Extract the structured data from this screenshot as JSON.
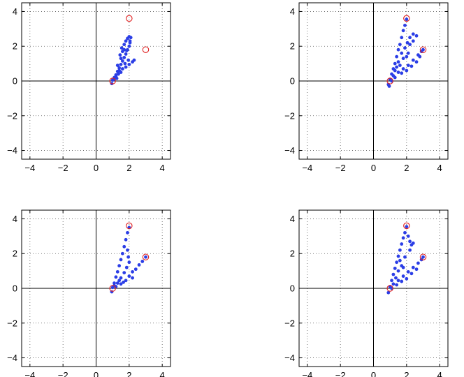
{
  "colors": {
    "points": "#2b3ee6",
    "markers": "#e02020",
    "axes": "#000000",
    "grid": "#555555"
  },
  "chart_data": [
    {
      "type": "scatter",
      "title": "",
      "xlabel": "",
      "ylabel": "",
      "xlim": [
        -4.5,
        4.5
      ],
      "ylim": [
        -4.5,
        4.5
      ],
      "xticks": [
        -4,
        -2,
        0,
        2,
        4
      ],
      "yticks": [
        -4,
        -2,
        0,
        2,
        4
      ],
      "xtick_labels": [
        "−4",
        "−2",
        "0",
        "2",
        "4"
      ],
      "ytick_labels": [
        "−4",
        "−2",
        "0",
        "2",
        "4"
      ],
      "grid": "dotted",
      "markers": [
        [
          1,
          0
        ],
        [
          2,
          3.6
        ],
        [
          3,
          1.8
        ]
      ],
      "series": [
        {
          "values": [
            [
              0.95,
              -0.15
            ],
            [
              1.0,
              0.05
            ],
            [
              1.1,
              0.2
            ],
            [
              1.2,
              0.35
            ],
            [
              1.3,
              0.55
            ],
            [
              1.4,
              0.75
            ],
            [
              1.5,
              0.95
            ],
            [
              1.6,
              1.15
            ],
            [
              1.7,
              1.35
            ],
            [
              1.8,
              1.55
            ],
            [
              1.9,
              1.8
            ],
            [
              2.0,
              2.0
            ],
            [
              2.05,
              2.3
            ],
            [
              2.1,
              2.5
            ],
            [
              2.0,
              2.55
            ],
            [
              1.9,
              2.45
            ],
            [
              1.8,
              2.3
            ],
            [
              1.7,
              2.1
            ],
            [
              1.55,
              1.9
            ],
            [
              1.45,
              1.5
            ],
            [
              1.5,
              1.3
            ],
            [
              1.6,
              1.7
            ],
            [
              1.7,
              1.8
            ],
            [
              1.3,
              0.9
            ],
            [
              1.4,
              0.6
            ],
            [
              1.6,
              0.7
            ],
            [
              1.8,
              0.8
            ],
            [
              2.0,
              0.95
            ],
            [
              2.2,
              1.1
            ],
            [
              2.3,
              1.2
            ],
            [
              1.2,
              0.25
            ],
            [
              1.35,
              0.4
            ],
            [
              1.5,
              0.5
            ],
            [
              1.75,
              1.0
            ],
            [
              1.95,
              1.2
            ],
            [
              1.85,
              1.75
            ],
            [
              2.05,
              2.2
            ],
            [
              1.1,
              0.1
            ],
            [
              1.25,
              0.15
            ]
          ]
        },
        {
          "values": [
            [
              0.9,
              -0.2
            ],
            [
              1.0,
              0.1
            ],
            [
              1.1,
              0.4
            ],
            [
              1.2,
              0.7
            ],
            [
              1.3,
              1.0
            ],
            [
              1.4,
              1.4
            ],
            [
              1.5,
              1.8
            ],
            [
              1.6,
              2.1
            ],
            [
              1.7,
              2.5
            ],
            [
              1.8,
              2.9
            ],
            [
              1.9,
              3.2
            ],
            [
              2.0,
              3.55
            ],
            [
              2.05,
              2.2
            ],
            [
              2.2,
              2.5
            ],
            [
              2.4,
              2.7
            ],
            [
              2.6,
              2.6
            ],
            [
              2.4,
              2.3
            ],
            [
              2.2,
              2.1
            ],
            [
              1.2,
              0.3
            ],
            [
              1.5,
              0.5
            ],
            [
              1.8,
              0.7
            ],
            [
              2.1,
              0.9
            ],
            [
              2.4,
              1.2
            ],
            [
              2.7,
              1.5
            ],
            [
              2.9,
              1.7
            ],
            [
              3.0,
              1.8
            ],
            [
              1.3,
              0.2
            ],
            [
              1.7,
              0.45
            ],
            [
              2.0,
              0.6
            ],
            [
              2.3,
              0.85
            ],
            [
              2.6,
              1.1
            ],
            [
              2.8,
              1.4
            ],
            [
              1.5,
              1.1
            ],
            [
              1.7,
              1.6
            ],
            [
              1.9,
              1.9
            ],
            [
              2.1,
              1.6
            ],
            [
              1.6,
              0.9
            ],
            [
              1.8,
              1.3
            ],
            [
              2.0,
              1.4
            ],
            [
              1.4,
              0.8
            ],
            [
              1.3,
              0.6
            ],
            [
              1.1,
              0.0
            ],
            [
              0.95,
              -0.3
            ]
          ]
        },
        {
          "values": [
            [
              0.95,
              -0.2
            ],
            [
              1.0,
              0.05
            ],
            [
              1.1,
              0.3
            ],
            [
              1.2,
              0.65
            ],
            [
              1.3,
              0.95
            ],
            [
              1.4,
              1.3
            ],
            [
              1.5,
              1.65
            ],
            [
              1.6,
              2.0
            ],
            [
              1.7,
              2.4
            ],
            [
              1.8,
              2.8
            ],
            [
              1.9,
              3.2
            ],
            [
              2.0,
              3.5
            ],
            [
              1.9,
              2.2
            ],
            [
              1.95,
              1.8
            ],
            [
              2.0,
              1.5
            ],
            [
              1.85,
              1.2
            ],
            [
              1.7,
              0.9
            ],
            [
              1.5,
              0.6
            ],
            [
              1.3,
              0.3
            ],
            [
              1.2,
              0.1
            ],
            [
              1.5,
              0.25
            ],
            [
              1.8,
              0.45
            ],
            [
              2.0,
              0.7
            ],
            [
              2.2,
              0.95
            ],
            [
              2.4,
              1.1
            ],
            [
              2.6,
              1.35
            ],
            [
              2.8,
              1.55
            ],
            [
              3.0,
              1.8
            ],
            [
              2.2,
              0.6
            ],
            [
              1.65,
              0.35
            ],
            [
              1.4,
              0.45
            ],
            [
              1.1,
              0.15
            ]
          ]
        },
        {
          "values": [
            [
              0.9,
              -0.25
            ],
            [
              1.0,
              0.1
            ],
            [
              1.1,
              0.45
            ],
            [
              1.2,
              0.8
            ],
            [
              1.3,
              1.15
            ],
            [
              1.4,
              1.5
            ],
            [
              1.5,
              1.85
            ],
            [
              1.6,
              2.2
            ],
            [
              1.7,
              2.55
            ],
            [
              1.8,
              2.9
            ],
            [
              1.9,
              3.2
            ],
            [
              2.0,
              3.55
            ],
            [
              2.1,
              3.0
            ],
            [
              2.2,
              2.7
            ],
            [
              2.3,
              2.5
            ],
            [
              2.4,
              2.6
            ],
            [
              2.2,
              2.2
            ],
            [
              1.9,
              1.8
            ],
            [
              1.7,
              1.3
            ],
            [
              1.5,
              1.0
            ],
            [
              1.2,
              0.25
            ],
            [
              1.5,
              0.45
            ],
            [
              1.8,
              0.7
            ],
            [
              2.1,
              0.95
            ],
            [
              2.4,
              1.2
            ],
            [
              2.7,
              1.45
            ],
            [
              2.9,
              1.65
            ],
            [
              3.0,
              1.8
            ],
            [
              1.4,
              0.2
            ],
            [
              1.7,
              0.4
            ],
            [
              2.0,
              0.55
            ],
            [
              2.3,
              0.85
            ],
            [
              2.6,
              1.1
            ],
            [
              1.6,
              1.6
            ],
            [
              1.8,
              1.2
            ],
            [
              1.1,
              0.0
            ],
            [
              1.35,
              0.6
            ]
          ]
        }
      ]
    }
  ]
}
